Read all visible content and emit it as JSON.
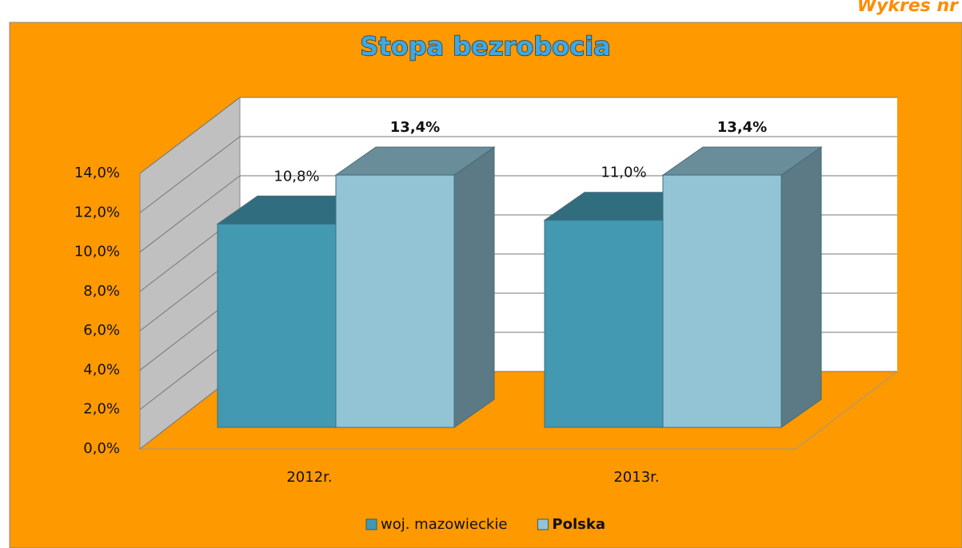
{
  "chart_data": {
    "type": "bar3d",
    "title": "Stopa bezrobocia",
    "annotation": "Wykres nr",
    "categories": [
      "2012r.",
      "2013r."
    ],
    "series": [
      {
        "name": "woj. mazowieckie",
        "color": "#4299b1",
        "values": [
          10.8,
          11.0
        ],
        "value_labels": [
          "10,8%",
          "11,0%"
        ]
      },
      {
        "name": "Polska",
        "color": "#93c4d6",
        "values": [
          13.4,
          13.4
        ],
        "value_labels": [
          "13,4%",
          "13,4%"
        ]
      }
    ],
    "ylim": [
      0,
      14
    ],
    "yticks": [
      {
        "value": 0,
        "label": "0,0%"
      },
      {
        "value": 2,
        "label": "2,0%"
      },
      {
        "value": 4,
        "label": "4,0%"
      },
      {
        "value": 6,
        "label": "6,0%"
      },
      {
        "value": 8,
        "label": "8,0%"
      },
      {
        "value": 10,
        "label": "10,0%"
      },
      {
        "value": 12,
        "label": "12,0%"
      },
      {
        "value": 14,
        "label": "14,0%"
      }
    ],
    "grid": true,
    "legend": "bottom"
  }
}
